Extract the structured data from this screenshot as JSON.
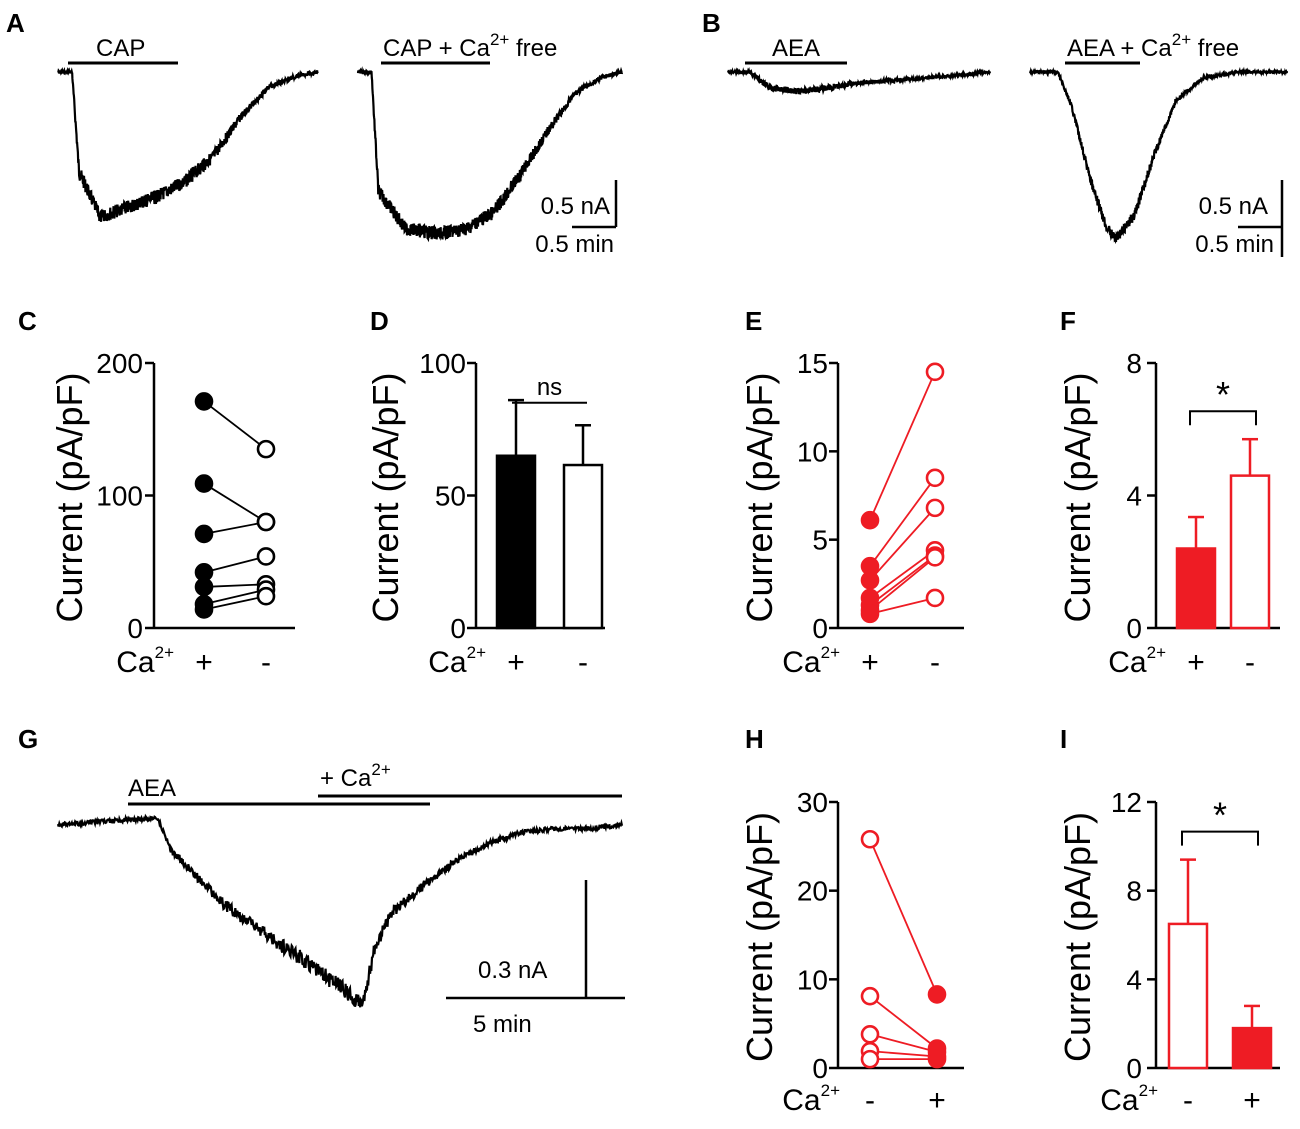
{
  "colors": {
    "black": "#000000",
    "red": "#ee1c24"
  },
  "chart_data": [
    {
      "panel": "A",
      "type": "line",
      "traces": [
        {
          "title": "CAP",
          "color": "#000000",
          "points": [
            [
              0,
              0
            ],
            [
              0.1,
              0
            ],
            [
              0.15,
              -1.0
            ],
            [
              0.3,
              -1.45
            ],
            [
              0.5,
              -1.35
            ],
            [
              0.7,
              -1.25
            ],
            [
              0.9,
              -1.1
            ],
            [
              1.1,
              -0.85
            ],
            [
              1.3,
              -0.45
            ],
            [
              1.5,
              -0.15
            ],
            [
              1.7,
              -0.04
            ],
            [
              1.85,
              0
            ]
          ]
        },
        {
          "title_main": "CAP + Ca",
          "title_sup": "2+",
          "title_tail": " free",
          "color": "#000000",
          "points": [
            [
              0,
              0
            ],
            [
              0.1,
              0
            ],
            [
              0.15,
              -1.1
            ],
            [
              0.35,
              -1.45
            ],
            [
              0.6,
              -1.5
            ],
            [
              0.8,
              -1.45
            ],
            [
              1.0,
              -1.3
            ],
            [
              1.2,
              -0.95
            ],
            [
              1.4,
              -0.55
            ],
            [
              1.6,
              -0.2
            ],
            [
              1.8,
              -0.05
            ],
            [
              1.95,
              0
            ]
          ]
        }
      ],
      "scale_y_label": "0.5 nA",
      "scale_x_label": "0.5 min"
    },
    {
      "panel": "B",
      "type": "line",
      "traces": [
        {
          "title": "AEA",
          "color": "#000000",
          "points": [
            [
              0,
              0
            ],
            [
              0.15,
              0
            ],
            [
              0.3,
              -0.1
            ],
            [
              0.5,
              -0.12
            ],
            [
              0.7,
              -0.1
            ],
            [
              0.9,
              -0.07
            ],
            [
              1.2,
              -0.05
            ],
            [
              1.5,
              -0.03
            ],
            [
              1.85,
              0
            ]
          ]
        },
        {
          "title_main": "AEA + Ca",
          "title_sup": "2+",
          "title_tail": " free",
          "color": "#000000",
          "points": [
            [
              0,
              0
            ],
            [
              0.2,
              0
            ],
            [
              0.3,
              -0.3
            ],
            [
              0.45,
              -1.0
            ],
            [
              0.55,
              -1.35
            ],
            [
              0.62,
              -1.45
            ],
            [
              0.75,
              -1.25
            ],
            [
              0.9,
              -0.7
            ],
            [
              1.05,
              -0.25
            ],
            [
              1.25,
              -0.05
            ],
            [
              1.5,
              0
            ],
            [
              1.85,
              0
            ]
          ]
        }
      ],
      "scale_y_label": "0.5 nA",
      "scale_x_label": "0.5 min"
    },
    {
      "panel": "C",
      "type": "scatter",
      "ylabel": "Current (pA/pF)",
      "ylim": [
        0,
        200
      ],
      "yticks": [
        "0",
        "100",
        "200"
      ],
      "cat_prefix": "Ca",
      "cat_sup": "2+",
      "categories": [
        "+",
        "-"
      ],
      "pairs": [
        [
          171,
          135
        ],
        [
          109,
          80
        ],
        [
          71,
          80
        ],
        [
          42,
          54
        ],
        [
          31,
          33
        ],
        [
          18,
          29
        ],
        [
          14,
          24
        ]
      ],
      "marker_first": "filled",
      "marker_second": "open",
      "color": "#000000"
    },
    {
      "panel": "D",
      "type": "bar",
      "ylabel": "Current (pA/pF)",
      "ylim": [
        0,
        100
      ],
      "yticks": [
        "0",
        "50",
        "100"
      ],
      "cat_prefix": "Ca",
      "cat_sup": "2+",
      "categories": [
        "+",
        "-"
      ],
      "values": [
        65,
        61.5
      ],
      "errors": [
        21,
        15
      ],
      "fill": [
        "filled",
        "open"
      ],
      "significance": "ns",
      "color": "#000000"
    },
    {
      "panel": "E",
      "type": "scatter",
      "ylabel": "Current (pA/pF)",
      "ylim": [
        0,
        15
      ],
      "yticks": [
        "0",
        "5",
        "10",
        "15"
      ],
      "cat_prefix": "Ca",
      "cat_sup": "2+",
      "categories": [
        "+",
        "-"
      ],
      "pairs": [
        [
          6.1,
          14.5
        ],
        [
          3.5,
          8.5
        ],
        [
          2.7,
          6.8
        ],
        [
          1.7,
          4.4
        ],
        [
          1.3,
          4.1
        ],
        [
          1.0,
          4.0
        ],
        [
          0.8,
          1.7
        ]
      ],
      "marker_first": "filled",
      "marker_second": "open",
      "color": "#ee1c24"
    },
    {
      "panel": "F",
      "type": "bar",
      "ylabel": "Current (pA/pF)",
      "ylim": [
        0,
        8
      ],
      "yticks": [
        "0",
        "4",
        "8"
      ],
      "cat_prefix": "Ca",
      "cat_sup": "2+",
      "categories": [
        "+",
        "-"
      ],
      "values": [
        2.4,
        4.6
      ],
      "errors": [
        0.95,
        1.1
      ],
      "fill": [
        "filled",
        "open"
      ],
      "significance": "*",
      "color": "#ee1c24"
    },
    {
      "panel": "G",
      "type": "line",
      "bar1_label": "AEA",
      "bar2_label_main": "+ Ca",
      "bar2_label_sup": "2+",
      "points": [
        [
          0,
          0
        ],
        [
          3.0,
          0.02
        ],
        [
          3.4,
          -0.07
        ],
        [
          5,
          -0.22
        ],
        [
          6.5,
          -0.32
        ],
        [
          7.5,
          -0.38
        ],
        [
          8.5,
          -0.45
        ],
        [
          9.2,
          -0.5
        ],
        [
          9.5,
          -0.36
        ],
        [
          10,
          -0.25
        ],
        [
          11,
          -0.17
        ],
        [
          12,
          -0.1
        ],
        [
          13,
          -0.05
        ],
        [
          14,
          -0.02
        ],
        [
          15,
          -0.01
        ],
        [
          16,
          -0.01
        ],
        [
          17,
          0
        ]
      ],
      "scale_y_label": "0.3 nA",
      "scale_x_label": "5 min",
      "color": "#000000"
    },
    {
      "panel": "H",
      "type": "scatter",
      "ylabel": "Current (pA/pF)",
      "ylim": [
        0,
        30
      ],
      "yticks": [
        "0",
        "10",
        "20",
        "30"
      ],
      "cat_prefix": "Ca",
      "cat_sup": "2+",
      "categories": [
        "-",
        "+"
      ],
      "pairs": [
        [
          25.8,
          8.3
        ],
        [
          8.1,
          2.2
        ],
        [
          3.8,
          1.8
        ],
        [
          1.9,
          1.3
        ],
        [
          1.0,
          1.0
        ]
      ],
      "marker_first": "open",
      "marker_second": "filled",
      "color": "#ee1c24"
    },
    {
      "panel": "I",
      "type": "bar",
      "ylabel": "Current (pA/pF)",
      "ylim": [
        0,
        12
      ],
      "yticks": [
        "0",
        "4",
        "8",
        "12"
      ],
      "cat_prefix": "Ca",
      "cat_sup": "2+",
      "categories": [
        "-",
        "+"
      ],
      "values": [
        6.5,
        1.8
      ],
      "errors": [
        2.9,
        1.0
      ],
      "fill": [
        "open",
        "filled"
      ],
      "significance": "*",
      "color": "#ee1c24"
    }
  ]
}
